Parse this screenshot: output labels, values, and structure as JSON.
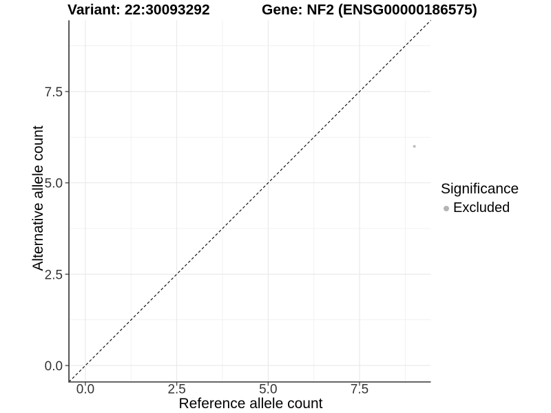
{
  "chart_data": {
    "type": "scatter",
    "title_left": "Variant: 22:30093292",
    "title_right": "Gene: NF2 (ENSG00000186575)",
    "x_axis": {
      "label": "Reference allele count",
      "lim": [
        -0.45,
        9.45
      ],
      "ticks": [
        {
          "value": 0,
          "label": "0.0"
        },
        {
          "value": 2.5,
          "label": "2.5"
        },
        {
          "value": 5,
          "label": "5.0"
        },
        {
          "value": 7.5,
          "label": "7.5"
        }
      ],
      "minor_ticks": [
        1.25,
        3.75,
        6.25,
        8.75
      ],
      "grid": true
    },
    "y_axis": {
      "label": "Alternative allele count",
      "lim": [
        -0.45,
        9.45
      ],
      "ticks": [
        {
          "value": 0,
          "label": "0.0"
        },
        {
          "value": 2.5,
          "label": "2.5"
        },
        {
          "value": 5,
          "label": "5.0"
        },
        {
          "value": 7.5,
          "label": "7.5"
        }
      ],
      "minor_ticks": [
        1.25,
        3.75,
        6.25,
        8.75
      ],
      "grid": true
    },
    "points": [
      {
        "x": 9,
        "y": 6,
        "series": "Excluded",
        "color": "#bebebe",
        "radius_px": 2
      }
    ],
    "reference_line": {
      "kind": "identity",
      "slope": 1,
      "intercept": 0,
      "style": "dashed",
      "color": "#000000"
    },
    "legend": {
      "title": "Significance",
      "position": "right",
      "items": [
        {
          "label": "Excluded",
          "marker": "circle-icon",
          "color": "#b4b4b4"
        }
      ]
    },
    "style": {
      "background": "#ffffff",
      "grid_major": "#e6e6e6",
      "grid_minor": "#f1f1f1",
      "axis_line_left": "#2a2a2a",
      "axis_line_bottom": "#4f4f4f",
      "tick_color": "#333333",
      "tick_label_color": "#333333"
    }
  }
}
